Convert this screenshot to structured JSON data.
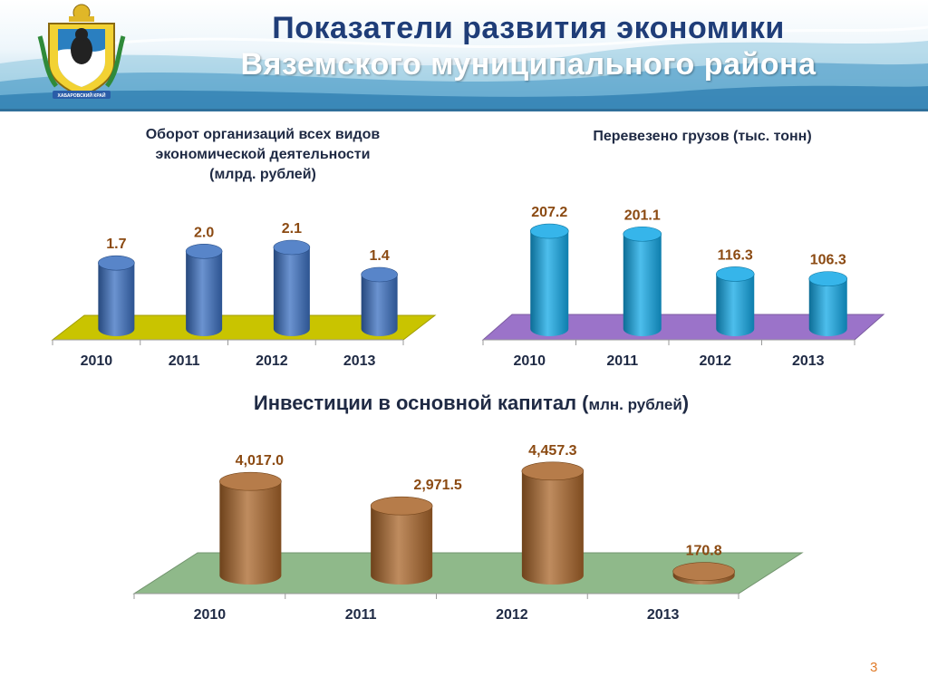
{
  "header": {
    "title_line1": "Показатели развития экономики",
    "title_line2": "Вяземского муниципального района",
    "emblem_caption": "ХАБАРОВСКИЙ КРАЙ"
  },
  "colors": {
    "turnover_bar": "#3a6fc0",
    "turnover_floor": "#c9c400",
    "cargo_bar": "#12a8e6",
    "cargo_floor": "#9b73c9",
    "invest_bar": "#a9652a",
    "invest_floor": "#8fb98a",
    "value_label_dark": "#8b4a12"
  },
  "page_number": "3",
  "chart_data": [
    {
      "type": "bar",
      "title": "Оборот организаций всех видов экономической деятельности (млрд. рублей)",
      "title_lines": [
        "Оборот организаций всех видов",
        "экономической деятельности",
        "(млрд. рублей)"
      ],
      "categories": [
        "2010",
        "2011",
        "2012",
        "2013"
      ],
      "values": [
        1.7,
        2.0,
        2.1,
        1.4
      ],
      "value_labels": [
        "1.7",
        "2.0",
        "2.1",
        "1.4"
      ],
      "ylim": [
        0,
        2.8
      ]
    },
    {
      "type": "bar",
      "title": "Перевезено грузов (тыс. тонн)",
      "title_lines": [
        "Перевезено грузов (тыс. тонн)"
      ],
      "categories": [
        "2010",
        "2011",
        "2012",
        "2013"
      ],
      "values": [
        207.2,
        201.1,
        116.3,
        106.3
      ],
      "value_labels": [
        "207.2",
        "201.1",
        "116.3",
        "106.3"
      ],
      "ylim": [
        0,
        240
      ]
    },
    {
      "type": "bar",
      "title": "Инвестиции в основной капитал (млн. рублей)",
      "title_main": "Инвестиции в основной капитал (",
      "title_unit": "млн. рублей",
      "title_close": ")",
      "categories": [
        "2010",
        "2011",
        "2012",
        "2013"
      ],
      "values": [
        4017.0,
        2971.5,
        4457.3,
        170.8
      ],
      "value_labels": [
        "4,017.0",
        "2,971.5",
        "4,457.3",
        "170.8"
      ],
      "ylim": [
        0,
        4800
      ]
    }
  ]
}
